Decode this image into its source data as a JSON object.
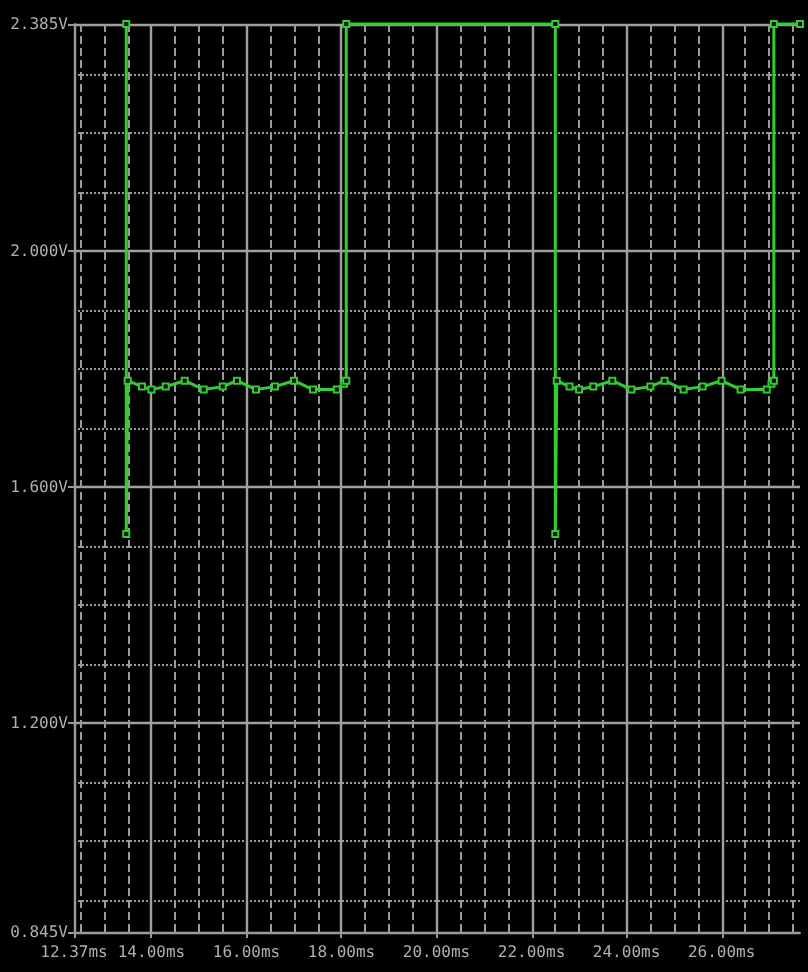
{
  "chart_data": {
    "type": "line",
    "marker": "square",
    "line_style": "solid",
    "grid": true,
    "xlim": [
      12.37,
      27.65
    ],
    "xticks": [
      {
        "value": 12.37,
        "label": "12.37ms"
      },
      {
        "value": 12.5,
        "label": null
      },
      {
        "value": 13,
        "label": null
      },
      {
        "value": 13.5,
        "label": null
      },
      {
        "value": 14,
        "label": "14.00ms"
      },
      {
        "value": 14.5,
        "label": null
      },
      {
        "value": 15,
        "label": null
      },
      {
        "value": 15.5,
        "label": null
      },
      {
        "value": 16,
        "label": "16.00ms"
      },
      {
        "value": 16.5,
        "label": null
      },
      {
        "value": 17,
        "label": null
      },
      {
        "value": 17.5,
        "label": null
      },
      {
        "value": 18,
        "label": "18.00ms"
      },
      {
        "value": 18.5,
        "label": null
      },
      {
        "value": 19,
        "label": null
      },
      {
        "value": 19.5,
        "label": null
      },
      {
        "value": 20,
        "label": "20.00ms"
      },
      {
        "value": 20.5,
        "label": null
      },
      {
        "value": 21,
        "label": null
      },
      {
        "value": 21.5,
        "label": null
      },
      {
        "value": 22,
        "label": "22.00ms"
      },
      {
        "value": 22.5,
        "label": null
      },
      {
        "value": 23,
        "label": null
      },
      {
        "value": 23.5,
        "label": null
      },
      {
        "value": 24,
        "label": "24.00ms"
      },
      {
        "value": 24.5,
        "label": null
      },
      {
        "value": 25,
        "label": null
      },
      {
        "value": 25.5,
        "label": null
      },
      {
        "value": 26,
        "label": "26.00ms"
      },
      {
        "value": 26.5,
        "label": null
      },
      {
        "value": 27,
        "label": null
      },
      {
        "value": 27.5,
        "label": null
      }
    ],
    "ylim": [
      0.845,
      2.385
    ],
    "yticks": [
      {
        "value": 0.845,
        "label": "0.845V"
      },
      {
        "value": 0.9,
        "label": null
      },
      {
        "value": 1.0,
        "label": null
      },
      {
        "value": 1.1,
        "label": null
      },
      {
        "value": 1.2,
        "label": "1.200V"
      },
      {
        "value": 1.3,
        "label": null
      },
      {
        "value": 1.4,
        "label": null
      },
      {
        "value": 1.5,
        "label": null
      },
      {
        "value": 1.6,
        "label": "1.600V"
      },
      {
        "value": 1.7,
        "label": null
      },
      {
        "value": 1.8,
        "label": null
      },
      {
        "value": 1.9,
        "label": null
      },
      {
        "value": 2.0,
        "label": "2.000V"
      },
      {
        "value": 2.1,
        "label": null
      },
      {
        "value": 2.2,
        "label": null
      },
      {
        "value": 2.3,
        "label": null
      },
      {
        "value": 2.385,
        "label": "2.385V"
      }
    ],
    "series": [
      {
        "color": "#33cc33",
        "x": [
          13.47,
          13.47,
          13.5,
          13.8,
          14.0,
          14.3,
          14.7,
          15.1,
          15.5,
          15.8,
          16.2,
          16.6,
          17.0,
          17.4,
          17.9,
          18.05,
          18.1,
          18.1,
          22.5,
          22.5,
          22.53,
          22.8,
          23.0,
          23.3,
          23.7,
          24.1,
          24.5,
          24.8,
          25.2,
          25.6,
          26.0,
          26.4,
          26.95,
          27.05,
          27.1,
          27.1,
          27.65
        ],
        "values": [
          2.385,
          1.52,
          1.78,
          1.77,
          1.765,
          1.77,
          1.78,
          1.765,
          1.77,
          1.78,
          1.765,
          1.77,
          1.78,
          1.765,
          1.765,
          1.775,
          1.78,
          2.385,
          2.385,
          1.52,
          1.78,
          1.77,
          1.765,
          1.77,
          1.78,
          1.765,
          1.77,
          1.78,
          1.765,
          1.77,
          1.78,
          1.765,
          1.765,
          1.775,
          1.78,
          2.385,
          2.385
        ]
      }
    ]
  }
}
